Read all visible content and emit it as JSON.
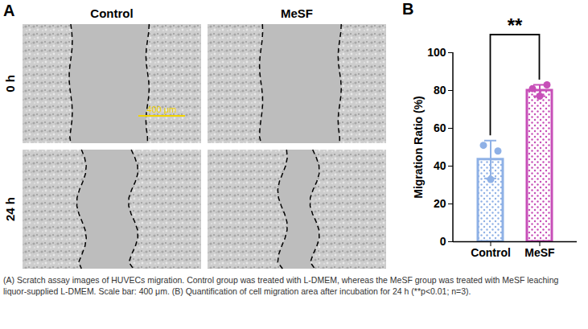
{
  "panel_a": {
    "label": "A",
    "columns": [
      "Control",
      "MeSF"
    ],
    "rows": [
      "0 h",
      "24 h"
    ],
    "scale_bar": "400 μm"
  },
  "chart_data": {
    "type": "bar",
    "panel_label": "B",
    "ylabel": "Migration Ratio (%)",
    "categories": [
      "Control",
      "MeSF"
    ],
    "values": [
      43.5,
      80
    ],
    "errors": [
      10,
      3
    ],
    "points": [
      [
        51,
        48,
        33
      ],
      [
        81,
        83,
        77
      ]
    ],
    "colors": [
      "#8fb1e6",
      "#c74fb8"
    ],
    "ylim": [
      0,
      100
    ],
    "yticks": [
      0,
      20,
      40,
      60,
      80,
      100
    ],
    "annotations": [
      {
        "text": "**",
        "between": [
          "Control",
          "MeSF"
        ]
      }
    ]
  },
  "caption": "(A) Scratch assay images of HUVECs migration. Control group was treated with L-DMEM, whereas the MeSF group was treated with MeSF leaching liquor-supplied L-DMEM. Scale bar: 400 μm. (B) Quantification of cell migration area after incubation for 24 h (**p<0.01; n=3)."
}
